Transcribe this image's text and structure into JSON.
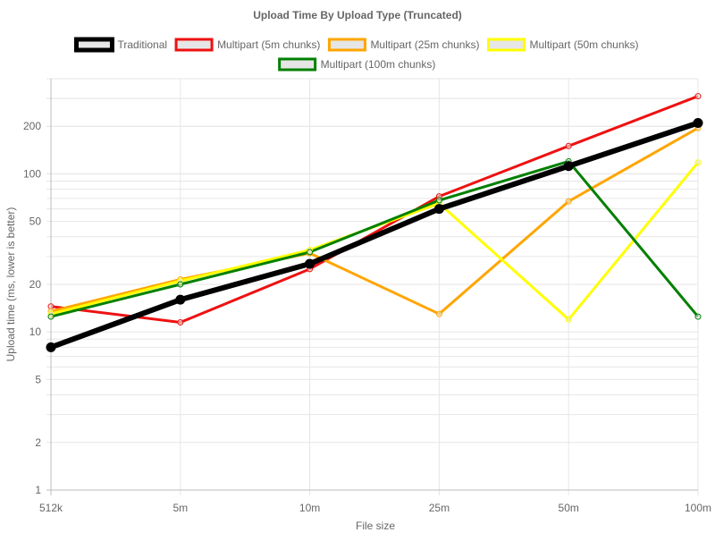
{
  "chart_data": {
    "type": "line",
    "title": "Upload Time By Upload Type (Truncated)",
    "xlabel": "File size",
    "ylabel": "Upload time (ms, lower is better)",
    "y_scale": "log",
    "ylim": [
      1,
      400
    ],
    "y_ticks": [
      1,
      2,
      5,
      10,
      20,
      50,
      100,
      200
    ],
    "grid": true,
    "legend_position": "top",
    "categories": [
      "512k",
      "5m",
      "10m",
      "25m",
      "50m",
      "100m"
    ],
    "series": [
      {
        "name": "Traditional",
        "color": "#000000",
        "emphasis": "thick",
        "values": [
          8,
          16,
          27,
          60,
          112,
          210
        ]
      },
      {
        "name": "Multipart (5m chunks)",
        "color": "#ee1111",
        "values": [
          14.5,
          11.5,
          25,
          72,
          150,
          310
        ]
      },
      {
        "name": "Multipart (25m chunks)",
        "color": "#ffa500",
        "values": [
          13.5,
          21.5,
          31.5,
          13,
          67,
          195
        ]
      },
      {
        "name": "Multipart (50m chunks)",
        "color": "#ffff00",
        "values": [
          13,
          21,
          33,
          65,
          12,
          118
        ]
      },
      {
        "name": "Multipart (100m chunks)",
        "color": "#008000",
        "values": [
          12.5,
          20,
          32,
          68,
          120,
          12.5
        ]
      }
    ]
  }
}
